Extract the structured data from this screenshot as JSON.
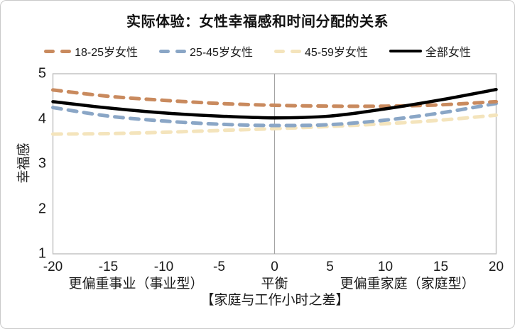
{
  "chart_data": {
    "type": "line",
    "title": "实际体验：女性幸福感和时间分配的关系",
    "ylabel": "幸福感",
    "xlabel": "【家庭与工作小时之差】",
    "xlim": [
      -20,
      20
    ],
    "ylim": [
      1,
      5
    ],
    "x": [
      -20,
      -15,
      -10,
      -5,
      0,
      5,
      10,
      15,
      20
    ],
    "xticks": [
      "-20",
      "-15",
      "-10",
      "-5",
      "0",
      "5",
      "10",
      "15",
      "20"
    ],
    "yticks": [
      "5",
      "4",
      "3",
      "2",
      "1"
    ],
    "grid": "no horizontal gridlines; single vertical gridline at x=0",
    "legend_position": "top",
    "series": [
      {
        "name": "18-25岁女性",
        "style": "dashed",
        "color": "#C98A5E",
        "values": [
          4.64,
          4.5,
          4.41,
          4.34,
          4.3,
          4.28,
          4.28,
          4.31,
          4.38
        ]
      },
      {
        "name": "25-45岁女性",
        "style": "dashed",
        "color": "#8AA6C6",
        "values": [
          4.25,
          4.06,
          3.95,
          3.88,
          3.85,
          3.87,
          3.97,
          4.13,
          4.34
        ]
      },
      {
        "name": "45-59岁女性",
        "style": "dashed",
        "color": "#F4E4BC",
        "values": [
          3.66,
          3.67,
          3.7,
          3.74,
          3.78,
          3.83,
          3.89,
          3.97,
          4.08
        ]
      },
      {
        "name": "全部女性",
        "style": "solid",
        "color": "#000000",
        "values": [
          4.38,
          4.24,
          4.13,
          4.06,
          4.02,
          4.06,
          4.22,
          4.42,
          4.65
        ]
      }
    ],
    "x_zone_labels": [
      {
        "x": -12.5,
        "label": "更偏重事业（事业型）"
      },
      {
        "x": 0,
        "label": "平衡"
      },
      {
        "x": 12,
        "label": "更偏重家庭（家庭型）"
      }
    ],
    "colors": {
      "plot_border": "#BFBFBF",
      "gridline": "#A3A3A3",
      "text": "#1A1A1A",
      "frame_border": "#C9C9C9"
    }
  }
}
